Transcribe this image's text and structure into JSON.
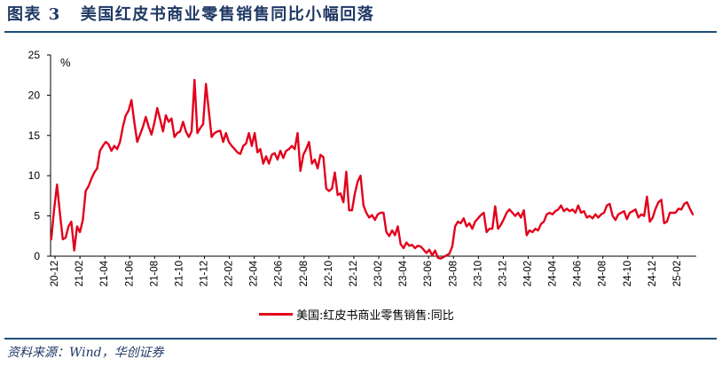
{
  "header": {
    "figure_label": "图表 3"
  },
  "source": "资料来源：Wind，华创证券",
  "colors": {
    "title": "#1f3864",
    "rule": "#1f4e79",
    "series": "#e3001b",
    "axis": "#000000"
  },
  "chart_data": {
    "type": "line",
    "title": "美国红皮书商业零售销售同比小幅回落",
    "xlabel": "",
    "ylabel": "%",
    "ylim": [
      0,
      25
    ],
    "yticks": [
      0,
      5,
      10,
      15,
      20,
      25
    ],
    "xlim": [
      -0.36,
      51.5
    ],
    "xticks": {
      "positions": [
        0,
        2,
        4,
        6,
        8,
        10,
        12,
        14,
        16,
        18,
        20,
        22,
        24,
        26,
        28,
        30,
        32,
        34,
        36,
        38,
        40,
        42,
        44,
        46,
        48,
        50
      ],
      "labels": [
        "20-12",
        "21-02",
        "21-04",
        "21-06",
        "21-08",
        "21-10",
        "21-12",
        "22-02",
        "22-04",
        "22-06",
        "22-08",
        "22-10",
        "22-12",
        "23-02",
        "23-04",
        "23-06",
        "23-08",
        "23-10",
        "23-12",
        "24-02",
        "24-04",
        "24-06",
        "24-08",
        "24-10",
        "24-12",
        "25-02"
      ]
    },
    "grid": false,
    "legend_loc": "bottom",
    "series": [
      {
        "name": "美国:红皮书商业零售销售:同比",
        "x_start": -0.3,
        "x_step": 0.23,
        "values": [
          2.1,
          5.9,
          8.9,
          5.4,
          2.1,
          2.3,
          3.7,
          4.3,
          0.7,
          3.7,
          3.0,
          4.5,
          8.1,
          8.7,
          9.6,
          10.4,
          10.9,
          13.1,
          13.7,
          14.2,
          13.9,
          13.1,
          13.7,
          13.3,
          14.2,
          16.1,
          17.5,
          18.1,
          19.4,
          16.6,
          14.2,
          15.1,
          16.1,
          17.3,
          16.1,
          15.1,
          16.6,
          18.4,
          17.0,
          15.5,
          17.5,
          16.7,
          17.1,
          14.8,
          15.3,
          15.5,
          16.7,
          15.5,
          14.8,
          15.5,
          21.9,
          15.3,
          15.9,
          16.4,
          21.4,
          18.1,
          14.8,
          15.3,
          15.5,
          15.6,
          14.2,
          15.3,
          14.2,
          13.7,
          13.3,
          12.9,
          12.7,
          13.7,
          14.0,
          15.3,
          13.7,
          15.3,
          12.9,
          13.3,
          11.5,
          12.4,
          11.5,
          12.6,
          12.8,
          12.0,
          13.1,
          12.2,
          13.1,
          13.3,
          13.7,
          13.3,
          15.3,
          10.6,
          12.6,
          13.3,
          14.2,
          11.5,
          12.0,
          10.9,
          12.6,
          12.3,
          8.4,
          8.1,
          8.4,
          10.4,
          7.6,
          7.8,
          6.7,
          10.5,
          5.7,
          5.7,
          7.8,
          9.3,
          10.0,
          6.3,
          5.4,
          4.8,
          5.1,
          4.5,
          5.2,
          5.4,
          5.4,
          3.0,
          2.5,
          3.2,
          2.6,
          3.7,
          1.5,
          1.0,
          1.7,
          1.3,
          1.4,
          1.0,
          1.3,
          1.2,
          0.8,
          0.4,
          0.8,
          0.1,
          0.7,
          -0.2,
          -0.3,
          -0.1,
          0.1,
          0.3,
          1.2,
          3.7,
          4.3,
          4.1,
          4.7,
          3.7,
          4.1,
          3.4,
          4.3,
          4.7,
          5.1,
          5.4,
          3.0,
          3.4,
          3.4,
          6.2,
          3.4,
          3.9,
          4.6,
          5.4,
          5.8,
          5.4,
          5.0,
          5.4,
          4.8,
          5.7,
          2.6,
          3.2,
          3.0,
          3.4,
          3.2,
          4.0,
          4.3,
          5.2,
          5.4,
          5.2,
          5.6,
          5.8,
          6.3,
          5.6,
          5.9,
          5.6,
          5.8,
          5.4,
          6.3,
          5.4,
          5.6,
          4.8,
          5.0,
          4.7,
          5.2,
          4.8,
          5.2,
          5.4,
          6.3,
          6.5,
          5.0,
          4.5,
          5.2,
          5.4,
          5.6,
          4.6,
          5.4,
          5.6,
          5.8,
          4.8,
          5.2,
          5.0,
          7.4,
          4.3,
          4.8,
          5.9,
          6.7,
          7.0,
          4.1,
          4.3,
          5.4,
          5.4,
          5.4,
          5.9,
          5.8,
          6.5,
          6.7,
          5.9,
          5.2
        ]
      }
    ]
  }
}
